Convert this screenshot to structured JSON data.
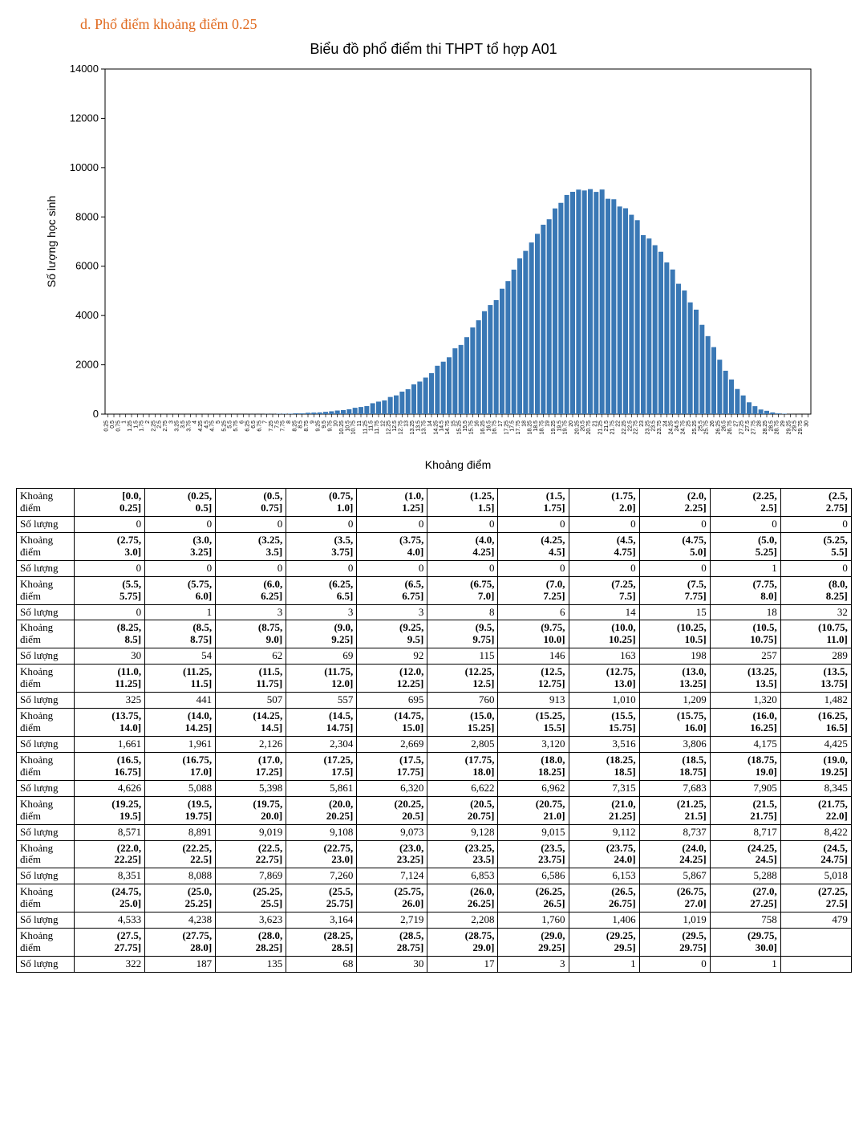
{
  "heading": "d.   Phổ điểm khoảng điểm 0.25",
  "heading_color": "#e06a1f",
  "chart": {
    "type": "bar",
    "title": "Biểu đồ phổ điểm thi THPT tổ hợp A01",
    "title_fontsize": 18,
    "xlabel": "Khoảng điểm",
    "ylabel": "Số lượng học sinh",
    "label_fontsize": 14,
    "bar_color": "#3a78b5",
    "background_color": "#ffffff",
    "axis_color": "#000000",
    "tick_fontsize_y": 13,
    "tick_fontsize_x": 7,
    "bar_gap_ratio": 0.18,
    "ylim": [
      0,
      14000
    ],
    "ytick_step": 2000,
    "xtick_step": 0.25,
    "xrange": [
      0,
      30
    ],
    "edges": [
      0.0,
      0.25,
      0.5,
      0.75,
      1.0,
      1.25,
      1.5,
      1.75,
      2.0,
      2.25,
      2.5,
      2.75,
      3.0,
      3.25,
      3.5,
      3.75,
      4.0,
      4.25,
      4.5,
      4.75,
      5.0,
      5.25,
      5.5,
      5.75,
      6.0,
      6.25,
      6.5,
      6.75,
      7.0,
      7.25,
      7.5,
      7.75,
      8.0,
      8.25,
      8.5,
      8.75,
      9.0,
      9.25,
      9.5,
      9.75,
      10.0,
      10.25,
      10.5,
      10.75,
      11.0,
      11.25,
      11.5,
      11.75,
      12.0,
      12.25,
      12.5,
      12.75,
      13.0,
      13.25,
      13.5,
      13.75,
      14.0,
      14.25,
      14.5,
      14.75,
      15.0,
      15.25,
      15.5,
      15.75,
      16.0,
      16.25,
      16.5,
      16.75,
      17.0,
      17.25,
      17.5,
      17.75,
      18.0,
      18.25,
      18.5,
      18.75,
      19.0,
      19.25,
      19.5,
      19.75,
      20.0,
      20.25,
      20.5,
      20.75,
      21.0,
      21.25,
      21.5,
      21.75,
      22.0,
      22.25,
      22.5,
      22.75,
      23.0,
      23.25,
      23.5,
      23.75,
      24.0,
      24.25,
      24.5,
      24.75,
      25.0,
      25.25,
      25.5,
      25.75,
      26.0,
      26.25,
      26.5,
      26.75,
      27.0,
      27.25,
      27.5,
      27.75,
      28.0,
      28.25,
      28.5,
      28.75,
      29.0,
      29.25,
      29.5,
      29.75,
      30.0
    ],
    "values": [
      0,
      0,
      0,
      0,
      0,
      0,
      0,
      0,
      0,
      0,
      0,
      0,
      0,
      0,
      0,
      0,
      0,
      0,
      0,
      0,
      1,
      0,
      0,
      1,
      3,
      3,
      3,
      8,
      6,
      14,
      15,
      18,
      32,
      30,
      54,
      62,
      69,
      92,
      115,
      146,
      163,
      198,
      257,
      289,
      325,
      441,
      507,
      557,
      695,
      760,
      913,
      1010,
      1209,
      1320,
      1482,
      1661,
      1961,
      2126,
      2304,
      2669,
      2805,
      3120,
      3516,
      3806,
      4175,
      4425,
      4626,
      5088,
      5398,
      5861,
      6320,
      6622,
      6962,
      7315,
      7683,
      7905,
      8345,
      8571,
      8891,
      9019,
      9108,
      9073,
      9128,
      9015,
      9112,
      8737,
      8717,
      8422,
      8351,
      8088,
      7869,
      7260,
      7124,
      6853,
      6586,
      6153,
      5867,
      5288,
      5018,
      4533,
      4238,
      3623,
      3164,
      2719,
      2208,
      1760,
      1406,
      1019,
      758,
      479,
      322,
      187,
      135,
      68,
      30,
      17,
      3,
      1,
      0,
      1
    ]
  },
  "table": {
    "row_label_range": "Khoảng điểm",
    "row_label_count": "Số lượng",
    "columns_per_block": 11,
    "font_size": 13,
    "border_color": "#000000",
    "ranges": [
      "[0.0, 0.25]",
      "(0.25, 0.5]",
      "(0.5, 0.75]",
      "(0.75, 1.0]",
      "(1.0, 1.25]",
      "(1.25, 1.5]",
      "(1.5, 1.75]",
      "(1.75, 2.0]",
      "(2.0, 2.25]",
      "(2.25, 2.5]",
      "(2.5, 2.75]",
      "(2.75, 3.0]",
      "(3.0, 3.25]",
      "(3.25, 3.5]",
      "(3.5, 3.75]",
      "(3.75, 4.0]",
      "(4.0, 4.25]",
      "(4.25, 4.5]",
      "(4.5, 4.75]",
      "(4.75, 5.0]",
      "(5.0, 5.25]",
      "(5.25, 5.5]",
      "(5.5, 5.75]",
      "(5.75, 6.0]",
      "(6.0, 6.25]",
      "(6.25, 6.5]",
      "(6.5, 6.75]",
      "(6.75, 7.0]",
      "(7.0, 7.25]",
      "(7.25, 7.5]",
      "(7.5, 7.75]",
      "(7.75, 8.0]",
      "(8.0, 8.25]",
      "(8.25, 8.5]",
      "(8.5, 8.75]",
      "(8.75, 9.0]",
      "(9.0, 9.25]",
      "(9.25, 9.5]",
      "(9.5, 9.75]",
      "(9.75, 10.0]",
      "(10.0, 10.25]",
      "(10.25, 10.5]",
      "(10.5, 10.75]",
      "(10.75, 11.0]",
      "(11.0, 11.25]",
      "(11.25, 11.5]",
      "(11.5, 11.75]",
      "(11.75, 12.0]",
      "(12.0, 12.25]",
      "(12.25, 12.5]",
      "(12.5, 12.75]",
      "(12.75, 13.0]",
      "(13.0, 13.25]",
      "(13.25, 13.5]",
      "(13.5, 13.75]",
      "(13.75, 14.0]",
      "(14.0, 14.25]",
      "(14.25, 14.5]",
      "(14.5, 14.75]",
      "(14.75, 15.0]",
      "(15.0, 15.25]",
      "(15.25, 15.5]",
      "(15.5, 15.75]",
      "(15.75, 16.0]",
      "(16.0, 16.25]",
      "(16.25, 16.5]",
      "(16.5, 16.75]",
      "(16.75, 17.0]",
      "(17.0, 17.25]",
      "(17.25, 17.5]",
      "(17.5, 17.75]",
      "(17.75, 18.0]",
      "(18.0, 18.25]",
      "(18.25, 18.5]",
      "(18.5, 18.75]",
      "(18.75, 19.0]",
      "(19.0, 19.25]",
      "(19.25, 19.5]",
      "(19.5, 19.75]",
      "(19.75, 20.0]",
      "(20.0, 20.25]",
      "(20.25, 20.5]",
      "(20.5, 20.75]",
      "(20.75, 21.0]",
      "(21.0, 21.25]",
      "(21.25, 21.5]",
      "(21.5, 21.75]",
      "(21.75, 22.0]",
      "(22.0, 22.25]",
      "(22.25, 22.5]",
      "(22.5, 22.75]",
      "(22.75, 23.0]",
      "(23.0, 23.25]",
      "(23.25, 23.5]",
      "(23.5, 23.75]",
      "(23.75, 24.0]",
      "(24.0, 24.25]",
      "(24.25, 24.5]",
      "(24.5, 24.75]",
      "(24.75, 25.0]",
      "(25.0, 25.25]",
      "(25.25, 25.5]",
      "(25.5, 25.75]",
      "(25.75, 26.0]",
      "(26.0, 26.25]",
      "(26.25, 26.5]",
      "(26.5, 26.75]",
      "(26.75, 27.0]",
      "(27.0, 27.25]",
      "(27.25, 27.5]",
      "(27.5, 27.75]",
      "(27.75, 28.0]",
      "(28.0, 28.25]",
      "(28.25, 28.5]",
      "(28.5, 28.75]",
      "(28.75, 29.0]",
      "(29.0, 29.25]",
      "(29.25, 29.5]",
      "(29.5, 29.75]",
      "(29.75, 30.0]"
    ],
    "counts": [
      0,
      0,
      0,
      0,
      0,
      0,
      0,
      0,
      0,
      0,
      0,
      0,
      0,
      0,
      0,
      0,
      0,
      0,
      0,
      0,
      1,
      0,
      0,
      1,
      3,
      3,
      3,
      8,
      6,
      14,
      15,
      18,
      32,
      30,
      54,
      62,
      69,
      92,
      115,
      146,
      163,
      198,
      257,
      289,
      325,
      441,
      507,
      557,
      695,
      760,
      913,
      1010,
      1209,
      1320,
      1482,
      1661,
      1961,
      2126,
      2304,
      2669,
      2805,
      3120,
      3516,
      3806,
      4175,
      4425,
      4626,
      5088,
      5398,
      5861,
      6320,
      6622,
      6962,
      7315,
      7683,
      7905,
      8345,
      8571,
      8891,
      9019,
      9108,
      9073,
      9128,
      9015,
      9112,
      8737,
      8717,
      8422,
      8351,
      8088,
      7869,
      7260,
      7124,
      6853,
      6586,
      6153,
      5867,
      5288,
      5018,
      4533,
      4238,
      3623,
      3164,
      2719,
      2208,
      1760,
      1406,
      1019,
      758,
      479,
      322,
      187,
      135,
      68,
      30,
      17,
      3,
      1,
      0,
      1
    ]
  }
}
